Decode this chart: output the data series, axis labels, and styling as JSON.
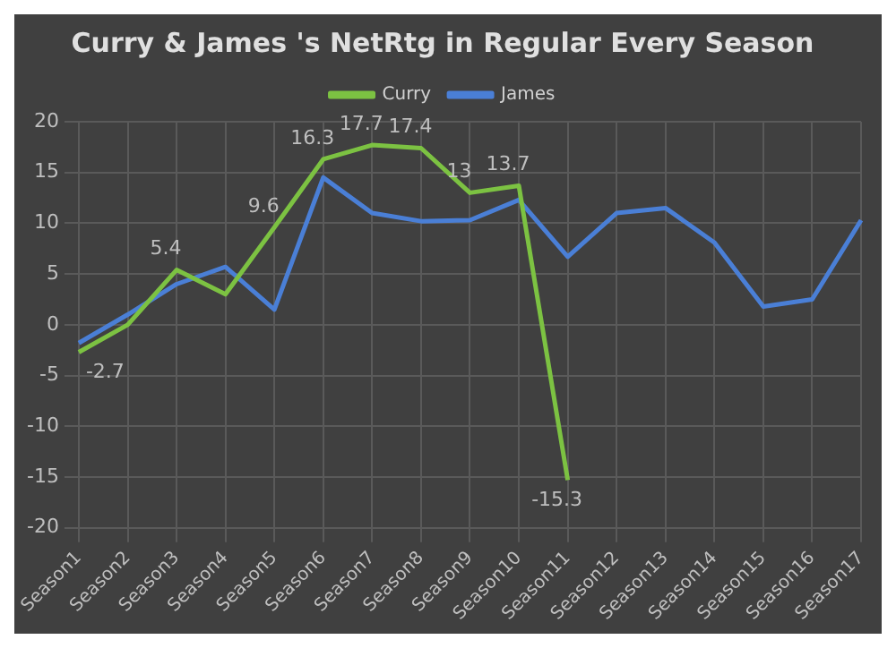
{
  "chart_data": {
    "type": "line",
    "title": "Curry & James 's NetRtg in Regular Every Season",
    "categories": [
      "Season1",
      "Season2",
      "Season3",
      "Season4",
      "Season5",
      "Season6",
      "Season7",
      "Season8",
      "Season9",
      "Season10",
      "Season11",
      "Season12",
      "Season13",
      "Season14",
      "Season15",
      "Season16",
      "Season17"
    ],
    "series": [
      {
        "name": "Curry",
        "color": "#7cc242",
        "values": [
          -2.7,
          0,
          5.4,
          3,
          9.6,
          16.3,
          17.7,
          17.4,
          13,
          13.7,
          -15.3,
          null,
          null,
          null,
          null,
          null,
          null
        ],
        "value_labels": [
          "-2.7",
          null,
          "5.4",
          null,
          "9.6",
          "16.3",
          "17.7",
          "17.4",
          "13",
          "13.7",
          "-15.3",
          null,
          null,
          null,
          null,
          null,
          null
        ]
      },
      {
        "name": "James",
        "color": "#4a7fd6",
        "values": [
          -1.8,
          1,
          4,
          5.7,
          1.5,
          14.5,
          11,
          10.2,
          10.3,
          12.3,
          6.7,
          11,
          11.5,
          8.1,
          1.8,
          2.5,
          10.3
        ]
      }
    ],
    "ylim": [
      -20,
      20
    ],
    "yticks": [
      -20,
      -15,
      -10,
      -5,
      0,
      5,
      10,
      15,
      20
    ],
    "grid": true,
    "legend": "top",
    "marker": "none",
    "line_style": "solid"
  }
}
